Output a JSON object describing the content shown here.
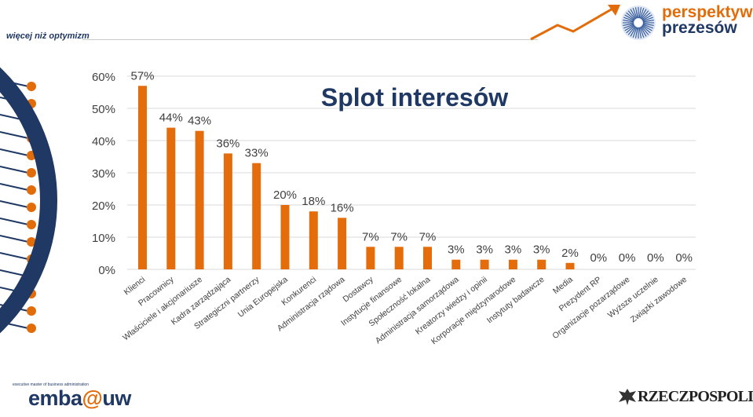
{
  "header": {
    "tagline": "więcej niż optymizm",
    "brand_line1": "perspektywa",
    "brand_line2": "prezesów"
  },
  "footer": {
    "emba_small": "executive master of business administration",
    "emba_main": "emba",
    "emba_at": "@",
    "emba_uw": "uw",
    "rzeczpospolita": "RZECZPOSPOLITA"
  },
  "colors": {
    "bar": "#e46c0a",
    "title": "#1f3864",
    "grid": "#d9d9d9",
    "text": "#404040",
    "brand_orange": "#e36c0a",
    "brand_navy": "#1f3864"
  },
  "chart_data": {
    "type": "bar",
    "title": "Splot interesów",
    "xlabel": "",
    "ylabel": "",
    "ylim": [
      0,
      60
    ],
    "yticks": [
      0,
      10,
      20,
      30,
      40,
      50,
      60
    ],
    "ytick_labels": [
      "0%",
      "10%",
      "20%",
      "30%",
      "40%",
      "50%",
      "60%"
    ],
    "grid": true,
    "categories": [
      "Klienci",
      "Pracownicy",
      "Właściciele i akcjonariusze",
      "Kadra zarządzająca",
      "Strategiczni partnerzy",
      "Unia Europejska",
      "Konkurenci",
      "Administracja rządowa",
      "Dostawcy",
      "Instytucje finansowe",
      "Społeczność lokalna",
      "Administracja samorządowa",
      "Kreatorzy wiedzy i opinii",
      "Korporacje międzynarodowe",
      "Instytuty badawcze",
      "Media",
      "Prezydent RP",
      "Organizacje pozarządowe",
      "Wyższe uczelnie",
      "Związki zawodowe"
    ],
    "values": [
      57,
      44,
      43,
      36,
      33,
      20,
      18,
      16,
      7,
      7,
      7,
      3,
      3,
      3,
      3,
      2,
      0,
      0,
      0,
      0
    ],
    "data_labels": [
      "57%",
      "44%",
      "43%",
      "36%",
      "33%",
      "20%",
      "18%",
      "16%",
      "7%",
      "7%",
      "7%",
      "3%",
      "3%",
      "3%",
      "3%",
      "2%",
      "0%",
      "0%",
      "0%",
      "0%"
    ]
  }
}
